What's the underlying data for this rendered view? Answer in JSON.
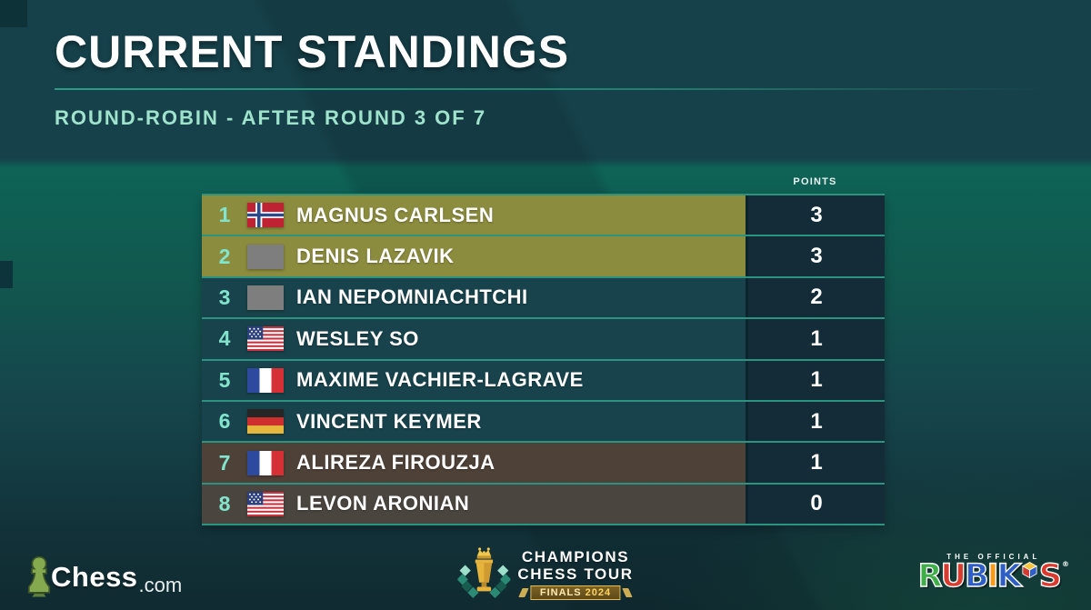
{
  "header": {
    "title": "CURRENT STANDINGS",
    "subtitle": "ROUND-ROBIN - AFTER ROUND 3 OF 7"
  },
  "table": {
    "points_header": "POINTS",
    "rows": [
      {
        "rank": "1",
        "name": "MAGNUS CARLSEN",
        "flag": "no",
        "points": "3",
        "highlight": "gold"
      },
      {
        "rank": "2",
        "name": "DENIS LAZAVIK",
        "flag": "fide",
        "points": "3",
        "highlight": "gold"
      },
      {
        "rank": "3",
        "name": "IAN NEPOMNIACHTCHI",
        "flag": "fide",
        "points": "2",
        "highlight": "teal"
      },
      {
        "rank": "4",
        "name": "WESLEY SO",
        "flag": "us",
        "points": "1",
        "highlight": "teal"
      },
      {
        "rank": "5",
        "name": "MAXIME VACHIER-LAGRAVE",
        "flag": "fr",
        "points": "1",
        "highlight": "teal"
      },
      {
        "rank": "6",
        "name": "VINCENT KEYMER",
        "flag": "de",
        "points": "1",
        "highlight": "teal"
      },
      {
        "rank": "7",
        "name": "ALIREZA FIROUZJA",
        "flag": "fr",
        "points": "1",
        "highlight": "brown"
      },
      {
        "rank": "8",
        "name": "LEVON ARONIAN",
        "flag": "us",
        "points": "0",
        "highlight": "brown_light"
      }
    ]
  },
  "footer": {
    "chesscom": {
      "brand": "Chess",
      "suffix": ".com"
    },
    "cct": {
      "line1": "CHAMPIONS",
      "line2": "CHESS TOUR",
      "banner_label": "FINALS",
      "banner_year": "2024"
    },
    "rubiks": {
      "tagline": "THE OFFICIAL",
      "registered": "®",
      "letters": [
        {
          "ch": "R",
          "color": "#3fae49"
        },
        {
          "ch": "U",
          "color": "#d93b2f"
        },
        {
          "ch": "B",
          "color": "#2f5fc4"
        },
        {
          "ch": "I",
          "color": "#f59c20"
        },
        {
          "ch": "K",
          "color": "#2f5fc4"
        },
        {
          "ch": "S",
          "color": "#d93b2f"
        }
      ]
    }
  },
  "colors": {
    "row_gold": "#8c8c3e",
    "row_teal": "#18434c",
    "row_brown": "#4e4238",
    "row_brown_light": "#4a453f",
    "points_cell_bg": "#132c38",
    "separator": "#2a9480",
    "rank_text": "#82e4cc",
    "subtitle_text": "#9fe3cd",
    "banner_gold": "#e3bc55"
  }
}
